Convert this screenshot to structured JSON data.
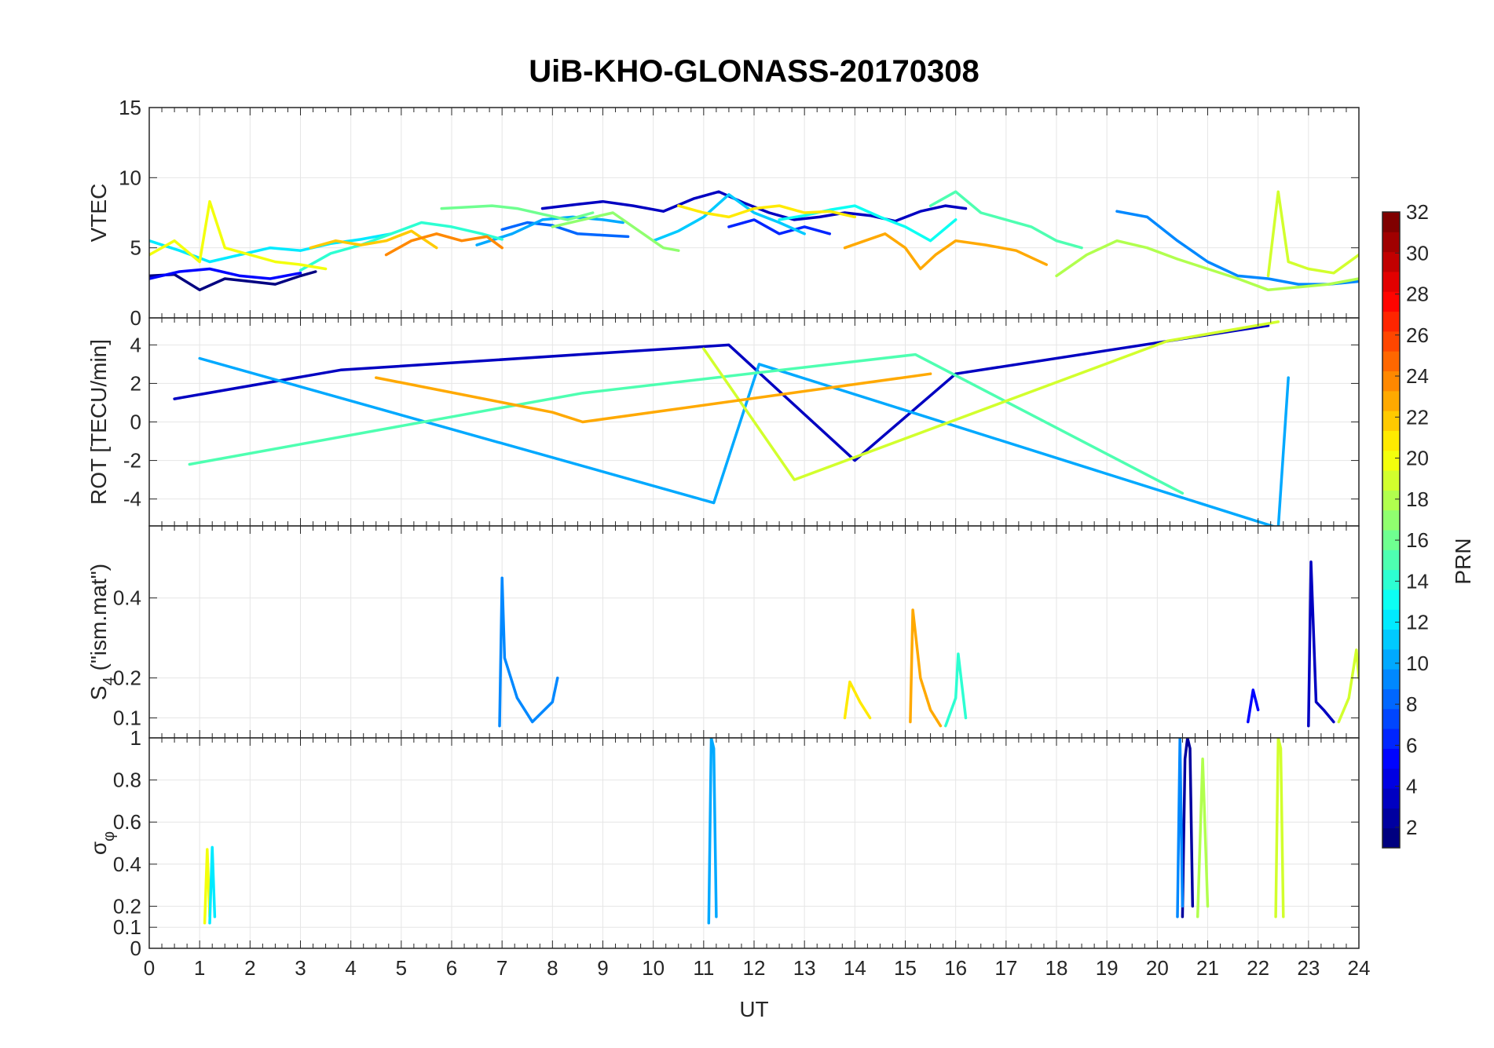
{
  "chart_data": {
    "type": "line",
    "title": "UiB-KHO-GLONASS-20170308",
    "x_label": "UT",
    "x_range": [
      0,
      24
    ],
    "x_ticks": [
      "0",
      "1",
      "2",
      "3",
      "4",
      "5",
      "6",
      "7",
      "8",
      "9",
      "10",
      "11",
      "12",
      "13",
      "14",
      "15",
      "16",
      "17",
      "18",
      "19",
      "20",
      "21",
      "22",
      "23",
      "24"
    ],
    "colorbar": {
      "label": "PRN",
      "range": [
        1,
        32
      ],
      "ticks": [
        "2",
        "4",
        "6",
        "8",
        "10",
        "12",
        "14",
        "16",
        "18",
        "20",
        "22",
        "24",
        "26",
        "28",
        "30",
        "32"
      ],
      "colormap": "jet"
    },
    "panels": [
      {
        "id": "vtec",
        "y_label": "VTEC",
        "y_range": [
          0,
          15
        ],
        "y_ticks": [
          "0",
          "5",
          "10",
          "15"
        ],
        "y_tick_values": [
          0,
          5,
          10,
          15
        ],
        "series": [
          {
            "prn": 1,
            "x": [
              0,
              0.5,
              1,
              1.5,
              2,
              2.5,
              3,
              3.3
            ],
            "y": [
              3.0,
              3.1,
              2.0,
              2.8,
              2.6,
              2.4,
              3.0,
              3.3
            ]
          },
          {
            "prn": 3,
            "x": [
              7.8,
              8.5,
              9.0,
              9.6,
              10.2,
              10.8,
              11.3,
              11.8,
              12.3,
              12.8,
              13.3,
              13.8,
              14.3,
              14.8,
              15.3,
              15.8,
              16.2
            ],
            "y": [
              7.8,
              8.1,
              8.3,
              8.0,
              7.6,
              8.5,
              9.0,
              8.2,
              7.5,
              7.0,
              7.2,
              7.5,
              7.3,
              6.9,
              7.6,
              8.0,
              7.8
            ]
          },
          {
            "prn": 5,
            "x": [
              0,
              0.6,
              1.2,
              1.8,
              2.4,
              3.0
            ],
            "y": [
              2.8,
              3.3,
              3.5,
              3.0,
              2.8,
              3.2
            ]
          },
          {
            "prn": 6,
            "x": [
              11.5,
              12.0,
              12.5,
              13.0,
              13.5
            ],
            "y": [
              6.5,
              7.0,
              6.0,
              6.5,
              6.0
            ]
          },
          {
            "prn": 8,
            "x": [
              7.0,
              7.5,
              8.0,
              8.5,
              9.0,
              9.5
            ],
            "y": [
              6.3,
              6.8,
              6.6,
              6.0,
              5.9,
              5.8
            ]
          },
          {
            "prn": 9,
            "x": [
              19.2,
              19.8,
              20.4,
              21.0,
              21.6,
              22.2,
              22.8,
              23.4,
              24.0
            ],
            "y": [
              7.6,
              7.2,
              5.5,
              4.0,
              3.0,
              2.8,
              2.4,
              2.4,
              2.6
            ]
          },
          {
            "prn": 10,
            "x": [
              6.5,
              7.2,
              7.8,
              8.4,
              9.0,
              9.4
            ],
            "y": [
              5.2,
              6.0,
              7.0,
              7.2,
              7.0,
              6.8
            ]
          },
          {
            "prn": 11,
            "x": [
              10.0,
              10.5,
              11.0,
              11.5,
              12.0,
              12.5,
              13.0
            ],
            "y": [
              5.5,
              6.2,
              7.2,
              8.8,
              7.5,
              6.8,
              6.0
            ]
          },
          {
            "prn": 12,
            "x": [
              0,
              0.6,
              1.2,
              1.8,
              2.4,
              3.0,
              3.6,
              4.2,
              4.8
            ],
            "y": [
              5.5,
              4.8,
              4.0,
              4.5,
              5.0,
              4.8,
              5.3,
              5.6,
              6.0
            ]
          },
          {
            "prn": 13,
            "x": [
              12.5,
              13.0,
              13.5,
              14.0,
              14.5,
              15.0,
              15.5,
              16.0
            ],
            "y": [
              7.0,
              7.3,
              7.7,
              8.0,
              7.2,
              6.5,
              5.5,
              7.0
            ]
          },
          {
            "prn": 14,
            "x": [
              3.0,
              3.6,
              4.2,
              4.8,
              5.4,
              6.0,
              6.6,
              7.0
            ],
            "y": [
              3.4,
              4.6,
              5.2,
              6.0,
              6.8,
              6.5,
              6.0,
              5.6
            ]
          },
          {
            "prn": 15,
            "x": [
              15.5,
              16.0,
              16.5,
              17.0,
              17.5,
              18.0,
              18.5
            ],
            "y": [
              8.0,
              9.0,
              7.5,
              7.0,
              6.5,
              5.5,
              5.0
            ]
          },
          {
            "prn": 16,
            "x": [
              5.8,
              6.3,
              6.8,
              7.3,
              7.8,
              8.3,
              8.8
            ],
            "y": [
              7.8,
              7.9,
              8.0,
              7.8,
              7.4,
              7.0,
              7.5
            ]
          },
          {
            "prn": 17,
            "x": [
              8.0,
              8.6,
              9.2,
              9.8,
              10.2,
              10.5
            ],
            "y": [
              6.5,
              7.0,
              7.5,
              6.0,
              5.0,
              4.8
            ]
          },
          {
            "prn": 18,
            "x": [
              18.0,
              18.6,
              19.2,
              19.8,
              20.4,
              21.0,
              21.6,
              22.2,
              22.8,
              23.4,
              24.0
            ],
            "y": [
              3.0,
              4.5,
              5.5,
              5.0,
              4.2,
              3.5,
              2.8,
              2.0,
              2.2,
              2.4,
              2.8
            ]
          },
          {
            "prn": 19,
            "x": [
              22.2,
              22.4,
              22.6,
              23.0,
              23.5,
              24.0
            ],
            "y": [
              3.0,
              9.0,
              4.0,
              3.5,
              3.2,
              4.5
            ]
          },
          {
            "prn": 20,
            "x": [
              0,
              0.5,
              1.0,
              1.2,
              1.5,
              2.0,
              2.5,
              3.0,
              3.5
            ],
            "y": [
              4.5,
              5.5,
              4.0,
              8.3,
              5.0,
              4.5,
              4.0,
              3.8,
              3.5
            ]
          },
          {
            "prn": 21,
            "x": [
              10.5,
              11.0,
              11.5,
              12.0,
              12.5,
              13.0,
              13.5,
              14.0
            ],
            "y": [
              8.0,
              7.5,
              7.2,
              7.8,
              8.0,
              7.5,
              7.6,
              7.2
            ]
          },
          {
            "prn": 22,
            "x": [
              3.2,
              3.7,
              4.2,
              4.7,
              5.2,
              5.7
            ],
            "y": [
              5.0,
              5.5,
              5.2,
              5.5,
              6.2,
              5.0
            ]
          },
          {
            "prn": 23,
            "x": [
              13.8,
              14.2,
              14.6,
              15.0,
              15.3,
              15.6,
              16.0,
              16.6,
              17.2,
              17.8
            ],
            "y": [
              5.0,
              5.5,
              6.0,
              5.0,
              3.5,
              4.5,
              5.5,
              5.2,
              4.8,
              3.8
            ]
          },
          {
            "prn": 24,
            "x": [
              4.7,
              5.2,
              5.7,
              6.2,
              6.7,
              7.0
            ],
            "y": [
              4.5,
              5.5,
              6.0,
              5.5,
              5.8,
              5.0
            ]
          }
        ]
      },
      {
        "id": "rot",
        "y_label": "ROT [TECU/min]",
        "y_range": [
          -5.4,
          5.4
        ],
        "y_ticks": [
          "-4",
          "-2",
          "0",
          "2",
          "4"
        ],
        "y_tick_values": [
          -4,
          -2,
          0,
          2,
          4
        ],
        "series": [
          {
            "prn": 3,
            "x": [
              0.5,
              3.8,
              11.5,
              14.0,
              16.0,
              22.2
            ],
            "y": [
              1.2,
              2.7,
              4.0,
              -2.0,
              2.5,
              5.0
            ]
          },
          {
            "prn": 10,
            "x": [
              1.0,
              11.2,
              12.1,
              22.4,
              22.6
            ],
            "y": [
              3.3,
              -4.2,
              3.0,
              -5.5,
              2.3
            ]
          },
          {
            "prn": 15,
            "x": [
              0.8,
              8.6,
              15.2,
              20.5
            ],
            "y": [
              -2.2,
              1.5,
              3.5,
              -3.7
            ]
          },
          {
            "prn": 19,
            "x": [
              11.0,
              12.8,
              20.2,
              22.4
            ],
            "y": [
              3.8,
              -3.0,
              4.2,
              5.2
            ]
          },
          {
            "prn": 23,
            "x": [
              4.5,
              8.0,
              8.6,
              15.5
            ],
            "y": [
              2.3,
              0.5,
              0.0,
              2.5
            ]
          }
        ]
      },
      {
        "id": "s4",
        "y_label": "S4 (\"ism.mat\")",
        "y_label_main": "S",
        "y_label_sub": "4",
        "y_label_rest": " (\"ism.mat\")",
        "y_range": [
          0.05,
          0.58
        ],
        "y_ticks": [
          "0.1",
          "0.2",
          "0.4"
        ],
        "y_tick_values": [
          0.1,
          0.2,
          0.4
        ],
        "series": [
          {
            "prn": 9,
            "x": [
              6.95,
              7.0,
              7.05,
              7.3,
              7.6,
              8.0,
              8.1
            ],
            "y": [
              0.08,
              0.45,
              0.25,
              0.15,
              0.09,
              0.14,
              0.2
            ]
          },
          {
            "prn": 23,
            "x": [
              15.1,
              15.15,
              15.3,
              15.5,
              15.7
            ],
            "y": [
              0.09,
              0.37,
              0.2,
              0.12,
              0.08
            ]
          },
          {
            "prn": 14,
            "x": [
              15.8,
              16.0,
              16.05,
              16.2
            ],
            "y": [
              0.08,
              0.15,
              0.26,
              0.1
            ]
          },
          {
            "prn": 3,
            "x": [
              23.0,
              23.05,
              23.15,
              23.3,
              23.5
            ],
            "y": [
              0.08,
              0.49,
              0.14,
              0.12,
              0.09
            ]
          },
          {
            "prn": 21,
            "x": [
              13.8,
              13.9,
              14.1,
              14.3
            ],
            "y": [
              0.1,
              0.19,
              0.14,
              0.1
            ]
          },
          {
            "prn": 5,
            "x": [
              21.8,
              21.9,
              22.0
            ],
            "y": [
              0.09,
              0.17,
              0.12
            ]
          },
          {
            "prn": 19,
            "x": [
              23.6,
              23.8,
              23.95,
              24.0
            ],
            "y": [
              0.09,
              0.15,
              0.27,
              0.2
            ]
          }
        ]
      },
      {
        "id": "sigma",
        "y_label": "σφ",
        "y_label_main": "σ",
        "y_label_sub": "φ",
        "y_range": [
          0,
          1
        ],
        "y_ticks": [
          "0",
          "0.1",
          "0.2",
          "0.4",
          "0.6",
          "0.8",
          "1"
        ],
        "y_tick_values": [
          0,
          0.1,
          0.2,
          0.4,
          0.6,
          0.8,
          1.0
        ],
        "series": [
          {
            "prn": 10,
            "x": [
              11.1,
              11.15,
              11.2,
              11.25
            ],
            "y": [
              0.12,
              1.0,
              0.95,
              0.15
            ]
          },
          {
            "prn": 2,
            "x": [
              20.5,
              20.55,
              20.6,
              20.65,
              20.7
            ],
            "y": [
              0.15,
              0.9,
              1.0,
              0.95,
              0.2
            ]
          },
          {
            "prn": 9,
            "x": [
              20.4,
              20.45,
              20.5
            ],
            "y": [
              0.15,
              1.0,
              0.2
            ]
          },
          {
            "prn": 19,
            "x": [
              22.35,
              22.4,
              22.45,
              22.5
            ],
            "y": [
              0.15,
              1.0,
              0.95,
              0.15
            ]
          },
          {
            "prn": 18,
            "x": [
              20.8,
              20.9,
              21.0
            ],
            "y": [
              0.15,
              0.9,
              0.2
            ]
          },
          {
            "prn": 20,
            "x": [
              1.1,
              1.15,
              1.2
            ],
            "y": [
              0.12,
              0.47,
              0.15
            ]
          },
          {
            "prn": 12,
            "x": [
              1.2,
              1.25,
              1.3
            ],
            "y": [
              0.12,
              0.48,
              0.15
            ]
          }
        ]
      }
    ]
  }
}
